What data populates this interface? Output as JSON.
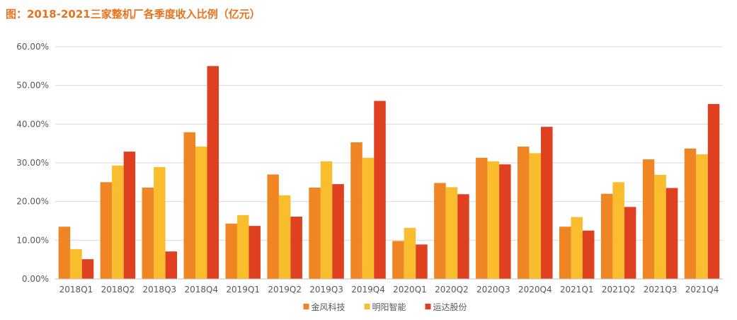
{
  "title": "图：2018-2021三家整机厂各季度收入比例（亿元）",
  "chart_data": {
    "type": "bar",
    "title": "图：2018-2021三家整机厂各季度收入比例（亿元）",
    "xlabel": "",
    "ylabel": "",
    "ylim": [
      0,
      60
    ],
    "y_ticks": [
      "0.00%",
      "10.00%",
      "20.00%",
      "30.00%",
      "40.00%",
      "50.00%",
      "60.00%"
    ],
    "grid": true,
    "legend_position": "bottom",
    "categories": [
      "2018Q1",
      "2018Q2",
      "2018Q3",
      "2018Q4",
      "2019Q1",
      "2019Q2",
      "2019Q3",
      "2019Q4",
      "2020Q1",
      "2020Q2",
      "2020Q3",
      "2020Q4",
      "2021Q1",
      "2021Q2",
      "2021Q3",
      "2021Q4"
    ],
    "series": [
      {
        "name": "金风科技",
        "color": "#f08524",
        "values": [
          13.5,
          25.0,
          23.6,
          37.9,
          14.3,
          27.0,
          23.6,
          35.3,
          9.8,
          24.8,
          31.3,
          34.2,
          13.5,
          22.0,
          30.9,
          33.7
        ]
      },
      {
        "name": "明阳智能",
        "color": "#fabd2e",
        "values": [
          7.7,
          29.3,
          28.9,
          34.2,
          16.5,
          21.6,
          30.4,
          31.3,
          13.2,
          23.7,
          30.4,
          32.5,
          16.0,
          25.0,
          26.9,
          32.2
        ]
      },
      {
        "name": "运达股份",
        "color": "#df4120",
        "values": [
          5.1,
          32.9,
          7.1,
          55.0,
          13.7,
          16.1,
          24.5,
          46.0,
          8.9,
          21.9,
          29.6,
          39.3,
          12.5,
          18.6,
          23.5,
          45.2
        ]
      }
    ]
  }
}
